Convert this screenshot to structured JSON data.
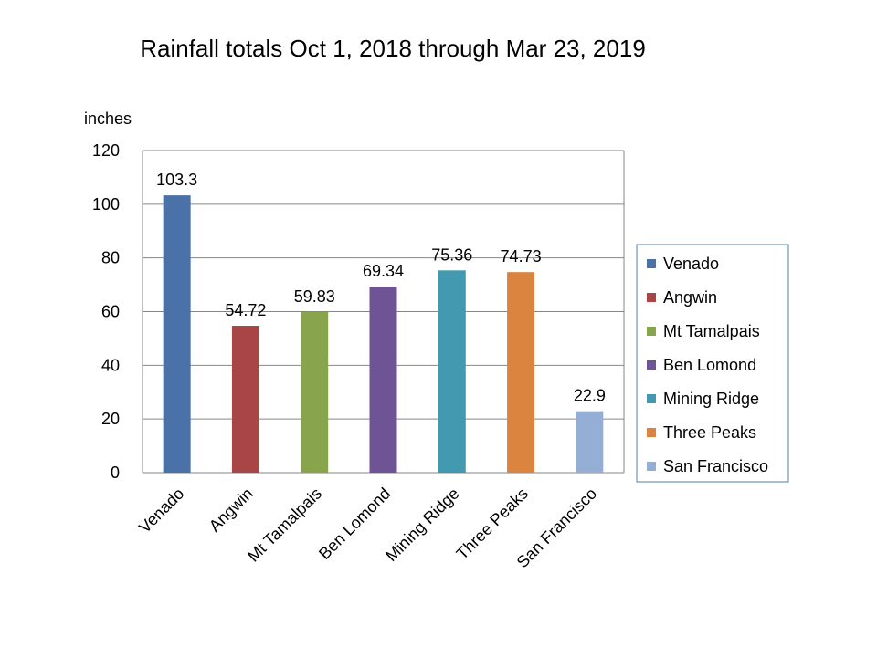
{
  "chart_data": {
    "type": "bar",
    "title": "Rainfall totals Oct 1, 2018 through Mar 23, 2019",
    "ylabel": "inches",
    "xlabel": "",
    "ylim": [
      0,
      120
    ],
    "yticks": [
      0,
      20,
      40,
      60,
      80,
      100,
      120
    ],
    "grid": true,
    "legend_position": "right",
    "categories": [
      "Venado",
      "Angwin",
      "Mt Tamalpais",
      "Ben Lomond",
      "Mining Ridge",
      "Three Peaks",
      "San Francisco"
    ],
    "values": [
      103.3,
      54.72,
      59.83,
      69.34,
      75.36,
      74.73,
      22.9
    ],
    "data_labels": [
      "103.3",
      "54.72",
      "59.83",
      "69.34",
      "75.36",
      "74.73",
      "22.9"
    ],
    "colors": [
      "#4a72a8",
      "#a84645",
      "#88a54d",
      "#6e5494",
      "#4299b0",
      "#db8440",
      "#94aed6"
    ]
  }
}
